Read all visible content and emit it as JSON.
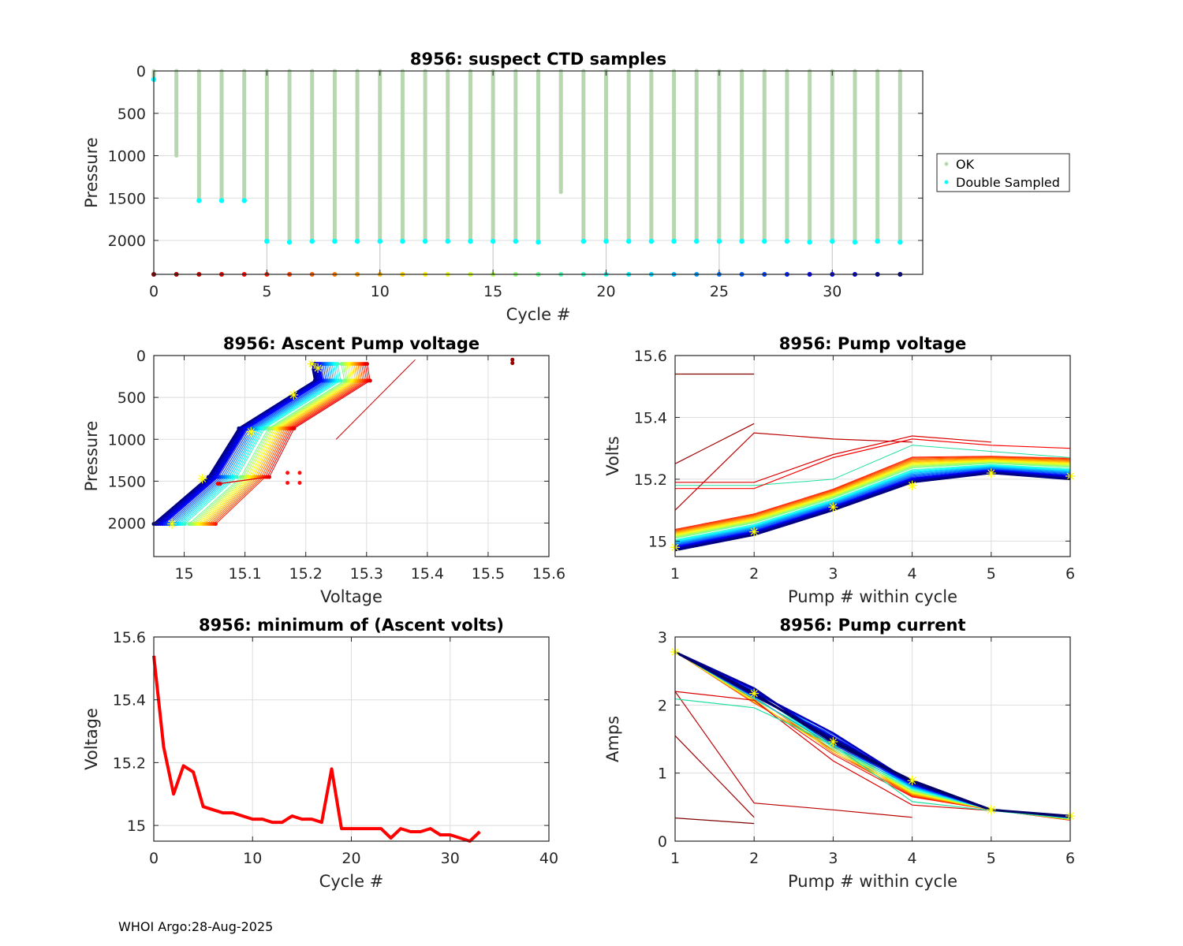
{
  "footer": "WHOI Argo:28-Aug-2025",
  "chart_data": [
    {
      "id": "suspect-ctd",
      "type": "scatter",
      "title": "8956: suspect CTD samples",
      "xlabel": "Cycle #",
      "ylabel": "Pressure",
      "xlim": [
        0,
        34
      ],
      "ylim": [
        2400,
        0
      ],
      "y_reversed": true,
      "xticks": [
        0,
        5,
        10,
        15,
        20,
        25,
        30
      ],
      "yticks": [
        0,
        500,
        1000,
        1500,
        2000
      ],
      "grid": true,
      "legend": {
        "placement": "outside-right",
        "entries": [
          {
            "label": "OK",
            "color": "#b7d7b0"
          },
          {
            "label": "Double Sampled",
            "color": "#00ffff"
          }
        ]
      },
      "cycles": [
        0,
        1,
        2,
        3,
        4,
        5,
        6,
        7,
        8,
        9,
        10,
        11,
        12,
        13,
        14,
        15,
        16,
        17,
        18,
        19,
        20,
        21,
        22,
        23,
        24,
        25,
        26,
        27,
        28,
        29,
        30,
        31,
        32,
        33
      ],
      "ok_max_pressure": [
        100,
        1000,
        1530,
        1530,
        1530,
        2010,
        2020,
        2010,
        2010,
        2010,
        2010,
        2010,
        2010,
        2010,
        2010,
        2010,
        2010,
        2020,
        1430,
        2010,
        2010,
        2010,
        2010,
        2010,
        2010,
        2010,
        2010,
        2010,
        2010,
        2020,
        2010,
        2020,
        2010,
        2020
      ],
      "double_sampled_pressure": [
        100,
        null,
        1530,
        1530,
        1530,
        2010,
        2020,
        2010,
        2010,
        2010,
        2010,
        2010,
        2010,
        2010,
        2010,
        2010,
        2010,
        2020,
        null,
        2010,
        2010,
        2010,
        2010,
        2010,
        2010,
        2010,
        2010,
        2010,
        2010,
        2020,
        2010,
        2020,
        2010,
        2020
      ],
      "cycle_marker_colors_note": "jet colormap from dark red (cycle 0) to dark blue (cycle 33)"
    },
    {
      "id": "ascent-pump-voltage",
      "type": "scatter",
      "title": "8956: Ascent Pump voltage",
      "xlabel": "Voltage",
      "ylabel": "Pressure",
      "xlim": [
        14.95,
        15.6
      ],
      "ylim": [
        2400,
        0
      ],
      "y_reversed": true,
      "xticks": [
        15,
        15.1,
        15.2,
        15.3,
        15.4,
        15.5,
        15.6
      ],
      "xticklabels": [
        "15",
        "15.1",
        "15.2",
        "15.3",
        "15.4",
        "15.5",
        "15.6"
      ],
      "yticks": [
        0,
        500,
        1000,
        1500,
        2000
      ],
      "grid": true,
      "series_note": "one line per cycle, jet colormap by cycle; yellow stars mark latest cycle",
      "latest_cycle_points": [
        {
          "v": 15.21,
          "p": 100
        },
        {
          "v": 15.22,
          "p": 150
        },
        {
          "v": 15.18,
          "p": 470
        },
        {
          "v": 15.11,
          "p": 910
        },
        {
          "v": 15.03,
          "p": 1470
        },
        {
          "v": 14.98,
          "p": 2010
        }
      ],
      "cycle0_points": [
        {
          "v": 15.54,
          "p": 50
        },
        {
          "v": 15.54,
          "p": 90
        }
      ]
    },
    {
      "id": "pump-voltage",
      "type": "line",
      "title": "8956: Pump voltage",
      "xlabel": "Pump # within cycle",
      "ylabel": "Volts",
      "xlim": [
        1,
        6
      ],
      "ylim": [
        14.95,
        15.6
      ],
      "xticks": [
        1,
        2,
        3,
        4,
        5,
        6
      ],
      "yticks": [
        15,
        15.2,
        15.4,
        15.6
      ],
      "yticklabels": [
        "15",
        "15.2",
        "15.4",
        "15.6"
      ],
      "grid": true,
      "latest_cycle": [
        14.98,
        15.03,
        15.11,
        15.18,
        15.22,
        15.21
      ],
      "early_cycles": [
        {
          "cycle": 0,
          "values": [
            15.54,
            15.54
          ]
        },
        {
          "cycle": 1,
          "values": [
            15.25,
            15.38
          ]
        },
        {
          "cycle": 2,
          "values": [
            15.1,
            15.35,
            15.33,
            15.32
          ]
        },
        {
          "cycle": 3,
          "values": [
            15.19,
            15.19,
            15.28,
            15.34,
            15.32
          ]
        },
        {
          "cycle": 4,
          "values": [
            15.17,
            15.17,
            15.27,
            15.33,
            15.31,
            15.3
          ]
        }
      ]
    },
    {
      "id": "min-ascent-volts",
      "type": "line",
      "title": "8956: minimum of (Ascent volts)",
      "xlabel": "Cycle #",
      "ylabel": "Voltage",
      "xlim": [
        0,
        40
      ],
      "ylim": [
        14.95,
        15.6
      ],
      "xticks": [
        0,
        10,
        20,
        30,
        40
      ],
      "yticks": [
        15,
        15.2,
        15.4,
        15.6
      ],
      "yticklabels": [
        "15",
        "15.2",
        "15.4",
        "15.6"
      ],
      "grid": true,
      "color": "#ff0000",
      "x": [
        0,
        1,
        2,
        3,
        4,
        5,
        6,
        7,
        8,
        9,
        10,
        11,
        12,
        13,
        14,
        15,
        16,
        17,
        18,
        19,
        20,
        21,
        22,
        23,
        24,
        25,
        26,
        27,
        28,
        29,
        30,
        31,
        32,
        33
      ],
      "values": [
        15.54,
        15.25,
        15.1,
        15.19,
        15.17,
        15.06,
        15.05,
        15.04,
        15.04,
        15.03,
        15.02,
        15.02,
        15.01,
        15.01,
        15.03,
        15.02,
        15.02,
        15.01,
        15.18,
        14.99,
        14.99,
        14.99,
        14.99,
        14.99,
        14.96,
        14.99,
        14.98,
        14.98,
        14.99,
        14.97,
        14.97,
        14.96,
        14.95,
        14.98
      ]
    },
    {
      "id": "pump-current",
      "type": "line",
      "title": "8956: Pump current",
      "xlabel": "Pump # within cycle",
      "ylabel": "Amps",
      "xlim": [
        1,
        6
      ],
      "ylim": [
        0,
        3
      ],
      "xticks": [
        1,
        2,
        3,
        4,
        5,
        6
      ],
      "yticks": [
        0,
        1,
        2,
        3
      ],
      "grid": true,
      "latest_cycle": [
        2.78,
        2.17,
        1.46,
        0.89,
        0.46,
        0.37
      ],
      "early_cycles": [
        {
          "cycle": 0,
          "values": [
            0.34,
            0.26
          ]
        },
        {
          "cycle": 1,
          "values": [
            1.55,
            0.35
          ]
        },
        {
          "cycle": 2,
          "values": [
            2.2,
            0.56,
            0.46,
            0.35
          ]
        },
        {
          "cycle": 3,
          "values": [
            2.2,
            2.07,
            1.18,
            0.53,
            0.45,
            0.36
          ]
        },
        {
          "cycle": 18,
          "values": [
            2.09,
            1.96,
            1.42,
            0.58,
            0.45,
            0.33
          ]
        }
      ]
    }
  ]
}
